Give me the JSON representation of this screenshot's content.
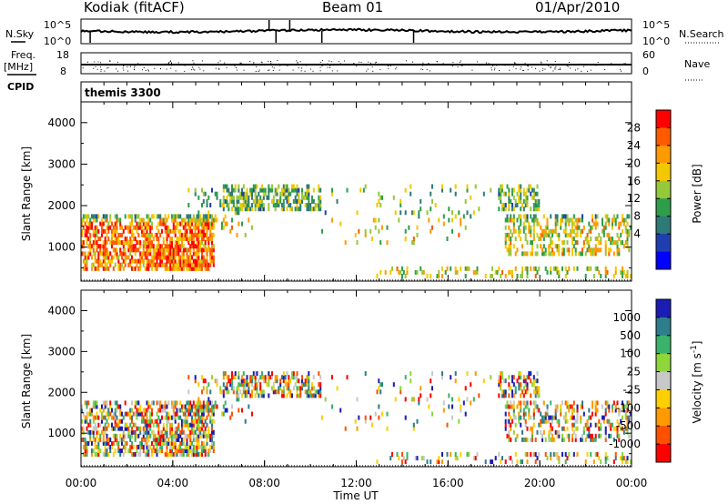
{
  "header": {
    "station": "Kodiak (fitACF)",
    "beam": "Beam 01",
    "date": "01/Apr/2010"
  },
  "strips": {
    "nsky_label": "N.Sky",
    "nsearch_label": "N.Search",
    "freq_label_1": "Freq.",
    "freq_label_2": "[MHz]",
    "nave_label": "Nave",
    "cpid_label": "CPID",
    "cpid_value": "themis 3300",
    "noise_ticks_left": [
      "10^5",
      "10^0"
    ],
    "noise_ticks_right": [
      "10^5",
      "10^0"
    ],
    "freq_ticks": [
      "18",
      "8"
    ],
    "nave_ticks": [
      "60",
      "0"
    ]
  },
  "colorbars": {
    "power": {
      "label": "Power [dB]",
      "ticks": [
        "28",
        "24",
        "20",
        "16",
        "12",
        "8",
        "4"
      ],
      "colors": [
        "#ff0000",
        "#ff5a00",
        "#ff9a00",
        "#f3c800",
        "#96c83c",
        "#2e9e4a",
        "#2f7a78",
        "#1f3fb0",
        "#0000ff"
      ]
    },
    "velocity": {
      "label": "Velocity [m s^-1]",
      "ticks": [
        "1000",
        "500",
        "100",
        "25",
        "-25",
        "-100",
        "-500",
        "-1000"
      ],
      "colors": [
        "#1c1cb4",
        "#2e7d8c",
        "#3bb36a",
        "#8ed63a",
        "#c8c8c8",
        "#ffd000",
        "#ff9a00",
        "#ff5000",
        "#ff0000"
      ]
    }
  },
  "chart_data": [
    {
      "type": "heatmap",
      "title": "",
      "panel": "Power",
      "ylabel": "Slant Range [km]",
      "xlabel": "",
      "ylim": [
        180,
        4500
      ],
      "xlim": [
        0,
        24
      ],
      "yticks": [
        "1000",
        "2000",
        "3000",
        "4000"
      ],
      "colorbar_label": "Power [dB]",
      "colorbar_range": [
        0,
        30
      ],
      "grid": false
    },
    {
      "type": "heatmap",
      "title": "",
      "panel": "Velocity",
      "ylabel": "Slant Range [km]",
      "xlabel": "Time UT",
      "xticks": [
        "00:00",
        "04:00",
        "08:00",
        "12:00",
        "16:00",
        "20:00",
        "00:00"
      ],
      "yticks": [
        "1000",
        "2000",
        "3000",
        "4000"
      ],
      "ylim": [
        180,
        4500
      ],
      "xlim": [
        0,
        24
      ],
      "colorbar_label": "Velocity [m s^-1]",
      "colorbar_range": [
        -1000,
        1000
      ],
      "grid": false
    }
  ]
}
